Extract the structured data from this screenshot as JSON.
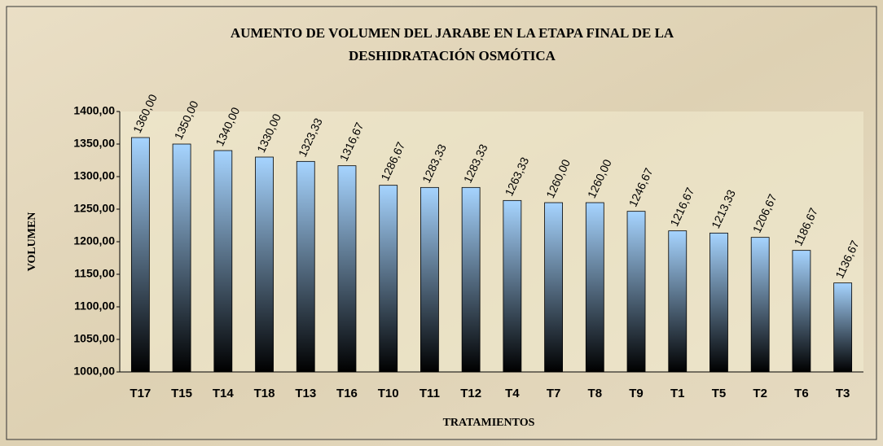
{
  "chart_data": {
    "type": "bar",
    "title": [
      "AUMENTO DE VOLUMEN DEL JARABE EN LA ETAPA FINAL DE LA",
      "DESHIDRATACIÓN OSMÓTICA"
    ],
    "x_label": "TRATAMIENTOS",
    "y_label": "VOLUMEN",
    "categories": [
      "T17",
      "T15",
      "T14",
      "T18",
      "T13",
      "T16",
      "T10",
      "T11",
      "T12",
      "T4",
      "T7",
      "T8",
      "T9",
      "T1",
      "T5",
      "T2",
      "T6",
      "T3"
    ],
    "values": [
      1360,
      1350,
      1340,
      1330,
      1323.33,
      1316.67,
      1286.67,
      1283.33,
      1283.33,
      1263.33,
      1260,
      1260,
      1246.67,
      1216.67,
      1213.33,
      1206.67,
      1186.67,
      1136.67
    ],
    "value_labels": [
      "1360,00",
      "1350,00",
      "1340,00",
      "1330,00",
      "1323,33",
      "1316,67",
      "1286,67",
      "1283,33",
      "1283,33",
      "1263,33",
      "1260,00",
      "1260,00",
      "1246,67",
      "1216,67",
      "1213,33",
      "1206,67",
      "1186,67",
      "1136,67"
    ],
    "color": [
      "#a6d4ff",
      "#000000"
    ],
    "ylim": [
      1000,
      1400
    ],
    "yticks": [
      {
        "value": 1000,
        "label": "1000,00"
      },
      {
        "value": 1050,
        "label": "1050,00"
      },
      {
        "value": 1100,
        "label": "1100,00"
      },
      {
        "value": 1150,
        "label": "1150,00"
      },
      {
        "value": 1200,
        "label": "1200,00"
      },
      {
        "value": 1250,
        "label": "1250,00"
      },
      {
        "value": 1300,
        "label": "1300,00"
      },
      {
        "value": 1350,
        "label": "1350,00"
      },
      {
        "value": 1400,
        "label": "1400,00"
      }
    ]
  }
}
